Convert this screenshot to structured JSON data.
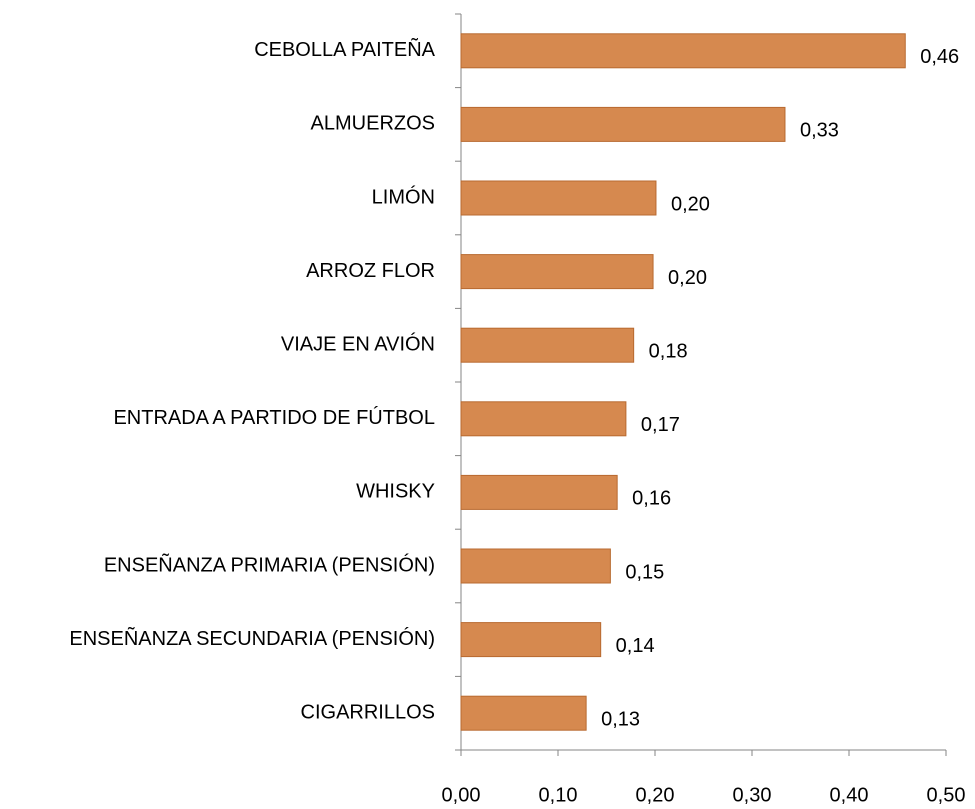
{
  "chart_data": {
    "type": "hbar",
    "categories": [
      "CEBOLLA PAITEÑA",
      "ALMUERZOS",
      "LIMÓN",
      "ARROZ FLOR",
      "VIAJE EN AVIÓN",
      "ENTRADA A PARTIDO DE FÚTBOL",
      "WHISKY",
      "ENSEÑANZA PRIMARIA (PENSIÓN)",
      "ENSEÑANZA SECUNDARIA (PENSIÓN)",
      "CIGARRILLOS"
    ],
    "values": [
      0.458,
      0.334,
      0.201,
      0.198,
      0.178,
      0.17,
      0.161,
      0.154,
      0.144,
      0.129
    ],
    "value_labels": [
      "0,46",
      "0,33",
      "0,20",
      "0,20",
      "0,18",
      "0,17",
      "0,16",
      "0,15",
      "0,14",
      "0,13"
    ],
    "color": "#d6894f",
    "xlim": [
      0,
      0.5
    ],
    "xticks": [
      {
        "value": 0,
        "label": "0,00"
      },
      {
        "value": 0.1,
        "label": "0,10"
      },
      {
        "value": 0.2,
        "label": "0,20"
      },
      {
        "value": 0.3,
        "label": "0,30"
      },
      {
        "value": 0.4,
        "label": "0,40"
      },
      {
        "value": 0.5,
        "label": "0,50"
      }
    ]
  }
}
